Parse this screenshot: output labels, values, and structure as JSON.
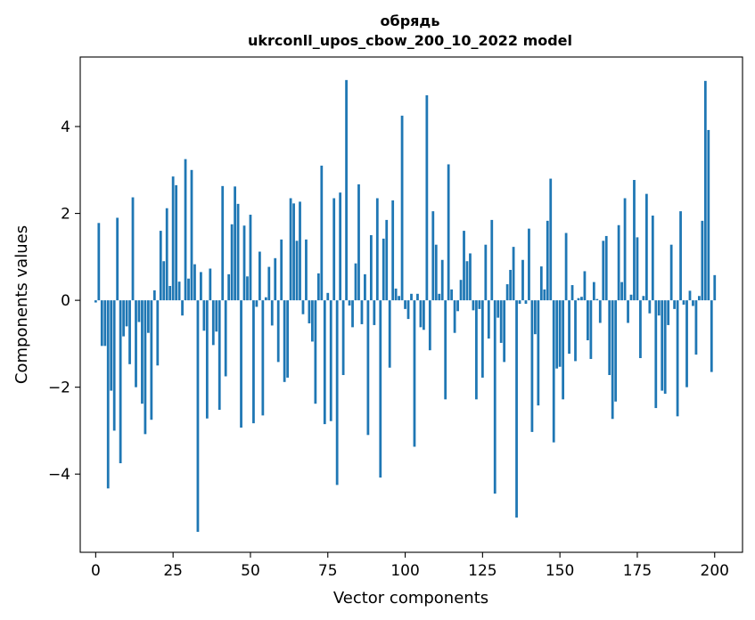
{
  "chart_data": {
    "type": "bar",
    "title": "обрядь",
    "subtitle": "ukrconll_upos_cbow_200_10_2022 model",
    "xlabel": "Vector components",
    "ylabel": "Components values",
    "xlim": [
      -5,
      209
    ],
    "ylim": [
      -5.8,
      5.6
    ],
    "xticks": [
      0,
      25,
      50,
      75,
      100,
      125,
      150,
      175,
      200
    ],
    "yticks": [
      -4,
      -2,
      0,
      2,
      4
    ],
    "ytick_labels": [
      "−4",
      "−2",
      "0",
      "2",
      "4"
    ],
    "grid": false,
    "bar_color": "#1f77b4",
    "values": [
      -0.05,
      1.78,
      -1.05,
      -1.05,
      -4.33,
      -2.08,
      -3.0,
      1.9,
      -3.75,
      -0.83,
      -0.6,
      -1.47,
      2.37,
      -2.0,
      -0.5,
      -2.38,
      -3.08,
      -0.75,
      -2.75,
      0.23,
      -1.5,
      1.6,
      0.9,
      2.12,
      0.33,
      2.85,
      2.65,
      0.43,
      -0.35,
      3.25,
      0.5,
      3.0,
      0.83,
      -5.33,
      0.65,
      -0.7,
      -2.72,
      0.73,
      -1.03,
      -0.72,
      -2.52,
      2.63,
      -1.75,
      0.6,
      1.75,
      2.62,
      2.22,
      -2.93,
      1.72,
      0.55,
      1.97,
      -2.83,
      -0.15,
      1.12,
      -2.65,
      0.07,
      0.77,
      -0.58,
      0.97,
      -1.42,
      1.4,
      -1.88,
      -1.78,
      2.35,
      2.23,
      1.37,
      2.27,
      -0.32,
      1.4,
      -0.53,
      -0.95,
      -2.38,
      0.62,
      3.1,
      -2.85,
      0.17,
      -2.78,
      2.35,
      -4.25,
      2.48,
      -1.72,
      5.07,
      -0.12,
      -0.62,
      0.85,
      2.67,
      -0.55,
      0.6,
      -3.1,
      1.5,
      -0.57,
      2.35,
      -4.08,
      1.42,
      1.85,
      -1.55,
      2.3,
      0.27,
      0.1,
      4.25,
      -0.2,
      -0.43,
      0.15,
      -3.37,
      0.15,
      -0.62,
      -0.68,
      4.72,
      -1.15,
      2.05,
      1.28,
      0.15,
      0.93,
      -2.28,
      3.13,
      0.25,
      -0.75,
      -0.25,
      0.47,
      1.6,
      0.9,
      1.08,
      -0.23,
      -2.28,
      -0.2,
      -1.78,
      1.28,
      -0.88,
      1.85,
      -4.45,
      -0.4,
      -0.98,
      -1.42,
      0.37,
      0.7,
      1.23,
      -5.0,
      -0.08,
      0.93,
      -0.08,
      1.65,
      -3.03,
      -0.78,
      -2.42,
      0.78,
      0.25,
      1.83,
      2.8,
      -3.27,
      -1.57,
      -1.53,
      -2.28,
      1.55,
      -1.23,
      0.35,
      -1.4,
      0.05,
      0.08,
      0.67,
      -0.92,
      -1.35,
      0.42,
      0.03,
      -0.52,
      1.37,
      1.48,
      -1.72,
      -2.73,
      -2.33,
      1.73,
      0.42,
      2.35,
      -0.52,
      0.13,
      2.77,
      1.45,
      -1.33,
      0.1,
      2.45,
      -0.3,
      1.95,
      -2.48,
      -0.35,
      -2.08,
      -2.15,
      -0.57,
      1.28,
      -0.2,
      -2.67,
      2.05,
      -0.1,
      -2.0,
      0.22,
      -0.13,
      -1.25,
      0.1,
      1.83,
      5.05,
      3.92,
      -1.65,
      0.58
    ]
  }
}
